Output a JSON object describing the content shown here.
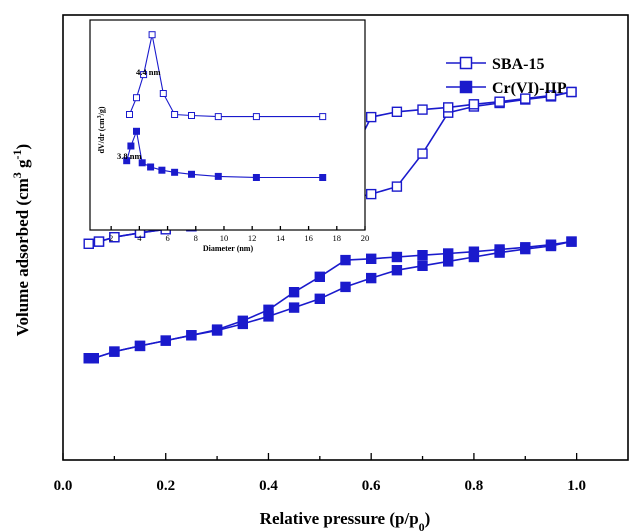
{
  "chart_data": [
    {
      "type": "line",
      "xlabel": "Relative pressure (p/p",
      "xlabel_sub": "0",
      "xlabel_close": ")",
      "ylabel": "Volume adsorbed (cm",
      "ylabel_sup1": "3",
      "ylabel_mid": " g",
      "ylabel_sup2": "-1",
      "ylabel_close": ")",
      "xlim": [
        0.0,
        1.1
      ],
      "ylim": [
        0,
        100
      ],
      "xticks": [
        "0.0",
        "0.2",
        "0.4",
        "0.6",
        "0.8",
        "1.0"
      ],
      "y_tick_labels_shown": false,
      "legend_position": "top-right",
      "series": [
        {
          "name": "SBA-15",
          "color": "#1a1acc",
          "marker": "open-square",
          "adsorption": {
            "x": [
              0.05,
              0.07,
              0.1,
              0.15,
              0.2,
              0.25,
              0.3,
              0.35,
              0.4,
              0.45,
              0.5,
              0.55,
              0.6,
              0.65,
              0.7,
              0.75,
              0.8,
              0.85,
              0.9,
              0.95,
              0.99
            ],
            "y": [
              48.0,
              48.5,
              49.5,
              50.5,
              51.3,
              52.0,
              52.8,
              53.6,
              54.5,
              55.5,
              56.8,
              58.0,
              59.3,
              61.0,
              68.5,
              77.8,
              79.2,
              80.0,
              80.8,
              81.5,
              82.5
            ]
          },
          "desorption": {
            "x": [
              0.99,
              0.95,
              0.9,
              0.85,
              0.8,
              0.75,
              0.7,
              0.65,
              0.6,
              0.55,
              0.5,
              0.45,
              0.4,
              0.35,
              0.3,
              0.25,
              0.2,
              0.15,
              0.1,
              0.07,
              0.05
            ],
            "y": [
              82.5,
              81.7,
              81.0,
              80.3,
              79.7,
              79.0,
              78.5,
              78.0,
              76.8,
              65.3,
              58.3,
              56.0,
              54.5,
              53.6,
              52.8,
              52.0,
              51.3,
              50.5,
              49.5,
              48.5,
              48.0
            ]
          }
        },
        {
          "name": "Cr(VI)-IIP",
          "color": "#1a1acc",
          "marker": "filled-square",
          "adsorption": {
            "x": [
              0.05,
              0.06,
              0.1,
              0.15,
              0.2,
              0.25,
              0.3,
              0.35,
              0.4,
              0.45,
              0.5,
              0.55,
              0.6,
              0.65,
              0.7,
              0.75,
              0.8,
              0.85,
              0.9,
              0.95,
              0.99
            ],
            "y": [
              22.0,
              22.0,
              23.5,
              24.8,
              26.0,
              27.2,
              28.3,
              29.8,
              31.5,
              33.5,
              35.5,
              38.2,
              40.2,
              42.0,
              43.0,
              44.0,
              45.0,
              46.0,
              46.8,
              47.5,
              48.5
            ]
          },
          "desorption": {
            "x": [
              0.99,
              0.95,
              0.9,
              0.85,
              0.8,
              0.75,
              0.7,
              0.65,
              0.6,
              0.55,
              0.5,
              0.45,
              0.4,
              0.35,
              0.3,
              0.25,
              0.2,
              0.15,
              0.1,
              0.06,
              0.05
            ],
            "y": [
              48.5,
              47.8,
              47.2,
              46.7,
              46.2,
              45.8,
              45.4,
              45.0,
              44.6,
              44.3,
              40.5,
              37.0,
              33.0,
              30.5,
              28.5,
              27.2,
              26.0,
              24.8,
              23.5,
              22.0,
              22.0
            ]
          }
        }
      ]
    },
    {
      "type": "line",
      "role": "inset",
      "xlabel": "Diameter (nm)",
      "ylabel": "dV/dr (cm",
      "ylabel_sup": "3",
      "ylabel_close": "/g)",
      "xlim": [
        0.5,
        20
      ],
      "ylim": [
        0,
        100
      ],
      "xticks": [
        2,
        4,
        6,
        8,
        10,
        12,
        14,
        16,
        18,
        20
      ],
      "annotations": [
        "4.4 nm",
        "3.8 nm"
      ],
      "series": [
        {
          "name": "SBA-15",
          "marker": "open-square",
          "x": [
            3.3,
            3.8,
            4.3,
            4.9,
            5.7,
            6.5,
            7.7,
            9.6,
            12.3,
            17.0
          ],
          "y": [
            55,
            63,
            74,
            93,
            65,
            55,
            54.5,
            54,
            54,
            54
          ]
        },
        {
          "name": "Cr(VI)-IIP",
          "marker": "filled-square",
          "x": [
            3.1,
            3.4,
            3.8,
            4.2,
            4.8,
            5.6,
            6.5,
            7.7,
            9.6,
            12.3,
            17.0
          ],
          "y": [
            33,
            40,
            47,
            32,
            30,
            28.5,
            27.5,
            26.5,
            25.5,
            25,
            25
          ]
        }
      ]
    }
  ]
}
